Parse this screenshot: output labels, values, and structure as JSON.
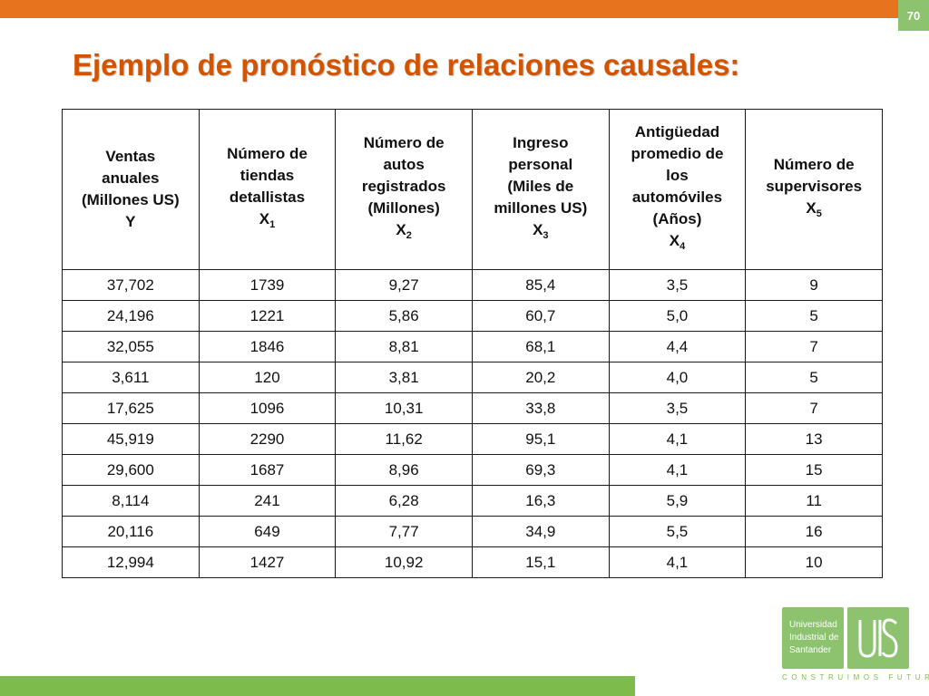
{
  "page": {
    "number": "70"
  },
  "title": "Ejemplo de pronóstico de relaciones causales:",
  "table": {
    "headers": [
      {
        "lines": [
          "Ventas",
          "anuales",
          "(Millones US)",
          "Y"
        ],
        "sub": ""
      },
      {
        "lines": [
          "Número de",
          "tiendas",
          "detallistas",
          "X"
        ],
        "sub": "1"
      },
      {
        "lines": [
          "Número de",
          "autos",
          "registrados",
          "(Millones)",
          "X"
        ],
        "sub": "2"
      },
      {
        "lines": [
          "Ingreso",
          "personal",
          "(Miles de",
          "millones US)",
          "X"
        ],
        "sub": "3"
      },
      {
        "lines": [
          "Antigüedad",
          "promedio de",
          "los",
          "automóviles",
          "(Años)",
          "X"
        ],
        "sub": "4"
      },
      {
        "lines": [
          "Número de",
          "supervisores",
          "X"
        ],
        "sub": "5"
      }
    ],
    "rows": [
      [
        "37,702",
        "1739",
        "9,27",
        "85,4",
        "3,5",
        "9"
      ],
      [
        "24,196",
        "1221",
        "5,86",
        "60,7",
        "5,0",
        "5"
      ],
      [
        "32,055",
        "1846",
        "8,81",
        "68,1",
        "4,4",
        "7"
      ],
      [
        "3,611",
        "120",
        "3,81",
        "20,2",
        "4,0",
        "5"
      ],
      [
        "17,625",
        "1096",
        "10,31",
        "33,8",
        "3,5",
        "7"
      ],
      [
        "45,919",
        "2290",
        "11,62",
        "95,1",
        "4,1",
        "13"
      ],
      [
        "29,600",
        "1687",
        "8,96",
        "69,3",
        "4,1",
        "15"
      ],
      [
        "8,114",
        "241",
        "6,28",
        "16,3",
        "5,9",
        "11"
      ],
      [
        "20,116",
        "649",
        "7,77",
        "34,9",
        "5,5",
        "16"
      ],
      [
        "12,994",
        "1427",
        "10,92",
        "15,1",
        "4,1",
        "10"
      ]
    ]
  },
  "logo": {
    "lines": [
      "Universidad",
      "Industrial de",
      "Santander"
    ],
    "tagline": "CONSTRUIMOS FUTURO"
  },
  "colors": {
    "accent_orange": "#e8731f",
    "title": "#d35400",
    "accent_green": "#7dbb4d",
    "logo_green": "#8dc26f"
  }
}
